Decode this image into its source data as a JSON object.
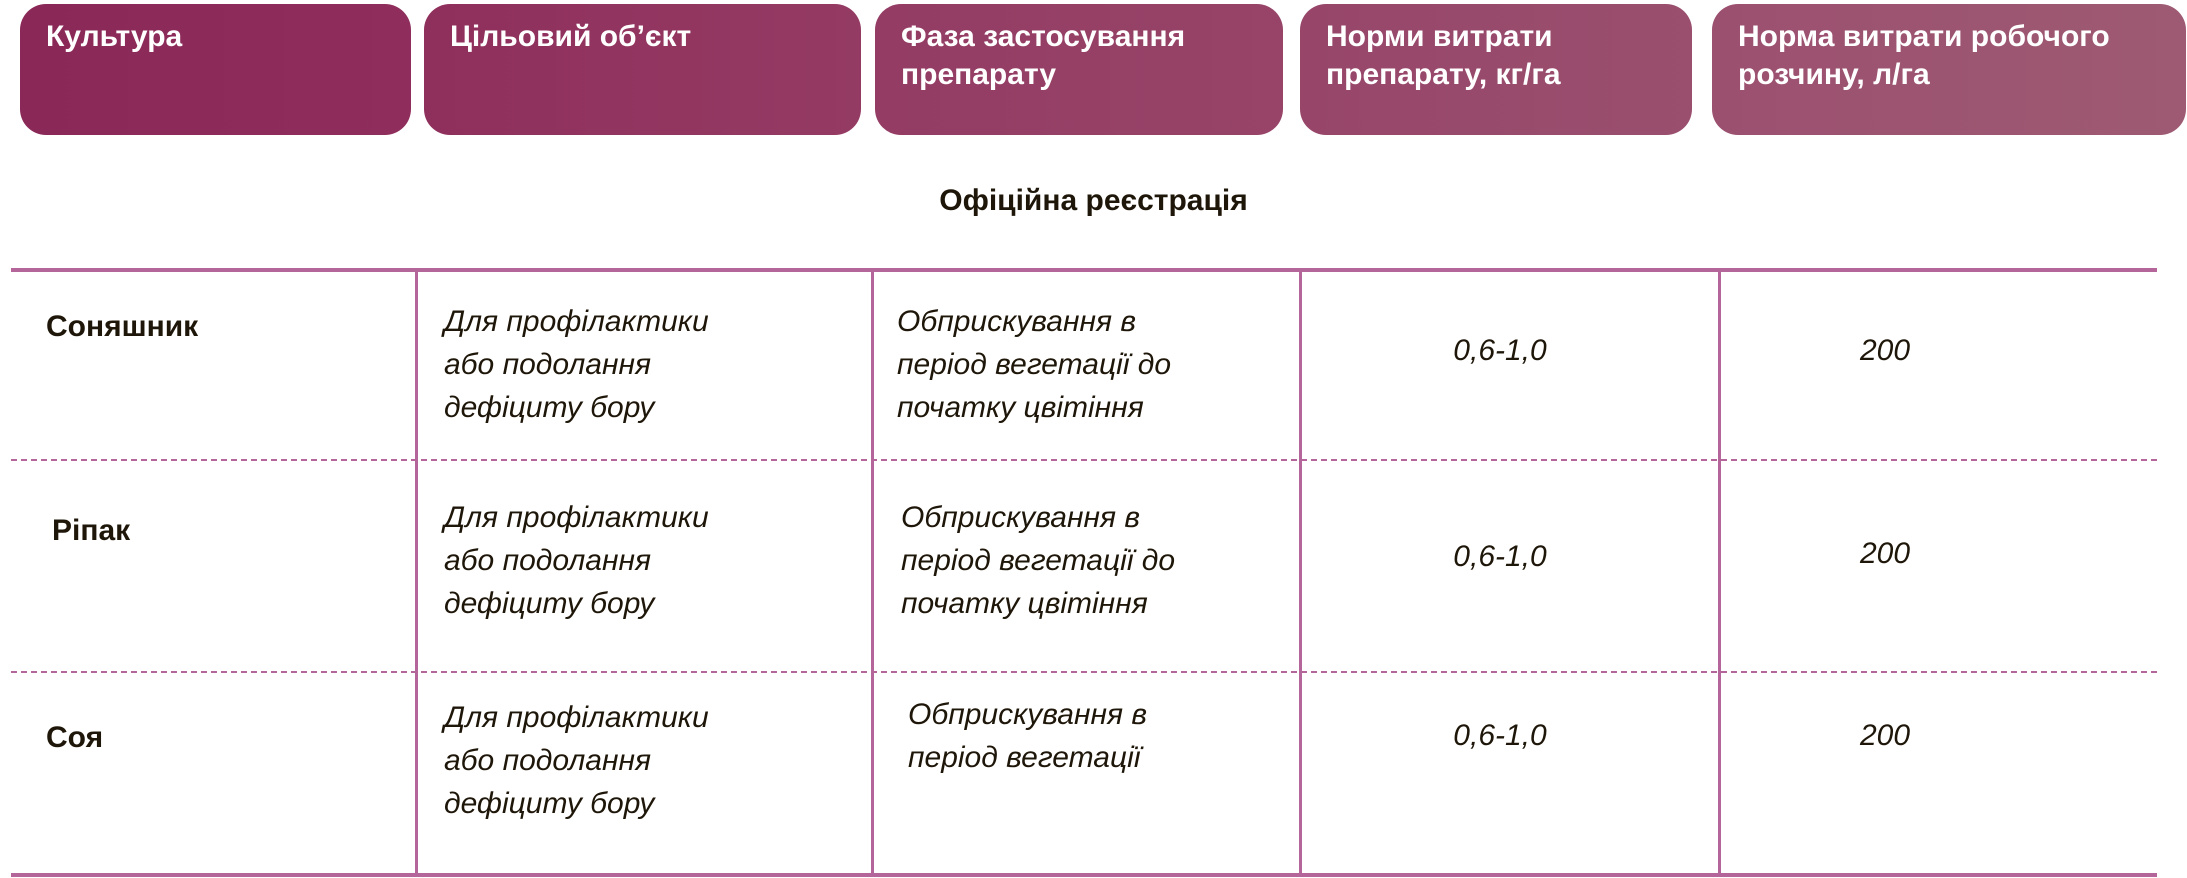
{
  "headers": [
    "Культура",
    "Цільовий об’єкт",
    "Фаза застосування препарату",
    "Норми витрати препарату, кг/га",
    "Норма витрати робочого розчину, л/га"
  ],
  "section_title": "Офіційна реєстрація",
  "colors": {
    "header_start": "#8a2858",
    "header_end": "#9e5a72",
    "lines": "#b4659a",
    "text": "#1e1609"
  },
  "rows": [
    {
      "crop": "Соняшник",
      "target": "Для профілактики\nабо подолання\nдефіциту бору",
      "phase": "Обприскування в\nперіод вегетації до\nпочатку цвітіння",
      "rate": "0,6-1,0",
      "solution": "200"
    },
    {
      "crop": "Ріпак",
      "target": "Для профілактики\nабо подолання\nдефіциту бору",
      "phase": "Обприскування в\nперіод вегетації до\nпочатку цвітіння",
      "rate": "0,6-1,0",
      "solution": "200"
    },
    {
      "crop": "Соя",
      "target": "Для профілактики\nабо подолання\nдефіциту бору",
      "phase": "Обприскування в\nперіод вегетації",
      "rate": "0,6-1,0",
      "solution": "200"
    }
  ]
}
